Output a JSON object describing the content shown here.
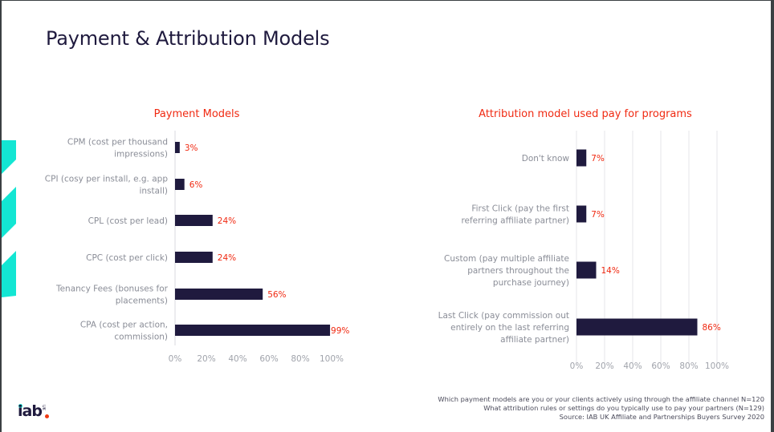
{
  "slide": {
    "title": "Payment & Attribution Models",
    "colors": {
      "accent": "#f02a12",
      "bar": "#1f1a3e",
      "decor": "#13e6d3",
      "title": "#1f1a3e"
    }
  },
  "chart_data": [
    {
      "type": "bar",
      "orientation": "horizontal",
      "title": "Payment Models",
      "categories": [
        [
          "CPM (cost per thousand",
          "impressions)"
        ],
        [
          "CPI (cosy per install, e.g. app",
          "install)"
        ],
        [
          "CPL (cost per lead)"
        ],
        [
          "CPC (cost per click)"
        ],
        [
          "Tenancy Fees (bonuses for",
          "placements)"
        ],
        [
          "CPA (cost per action,",
          "commission)"
        ]
      ],
      "values": [
        3,
        6,
        24,
        24,
        56,
        99
      ],
      "value_labels": [
        "3%",
        "6%",
        "24%",
        "24%",
        "56%",
        "99%"
      ],
      "xlim": [
        0,
        100
      ],
      "xticks": [
        "0%",
        "20%",
        "40%",
        "60%",
        "80%",
        "100%"
      ],
      "grid": false,
      "xlabel": "",
      "ylabel": ""
    },
    {
      "type": "bar",
      "orientation": "horizontal",
      "title": "Attribution model used pay for programs",
      "categories": [
        [
          "Don't know"
        ],
        [
          "First Click (pay the first",
          "referring affiliate partner)"
        ],
        [
          "Custom (pay multiple affiliate",
          "partners throughout the",
          "purchase journey)"
        ],
        [
          "Last Click (pay commission out",
          "entirely on the last referring",
          "affiliate partner)"
        ]
      ],
      "values": [
        7,
        7,
        14,
        86
      ],
      "value_labels": [
        "7%",
        "7%",
        "14%",
        "86%"
      ],
      "xlim": [
        0,
        100
      ],
      "xticks": [
        "0%",
        "20%",
        "40%",
        "60%",
        "80%",
        "100%"
      ],
      "grid": true,
      "xlabel": "",
      "ylabel": ""
    }
  ],
  "footnote": {
    "lines": [
      "Which payment models are you or your clients actively using through the affiliate channel N=120",
      "What attribution rules or settings do you typically use to pay your partners (N=129)",
      "Source: IAB UK Affiliate and Partnerships Buyers Survey 2020"
    ]
  },
  "logo": {
    "text": "iab",
    "suffix": "UK"
  }
}
